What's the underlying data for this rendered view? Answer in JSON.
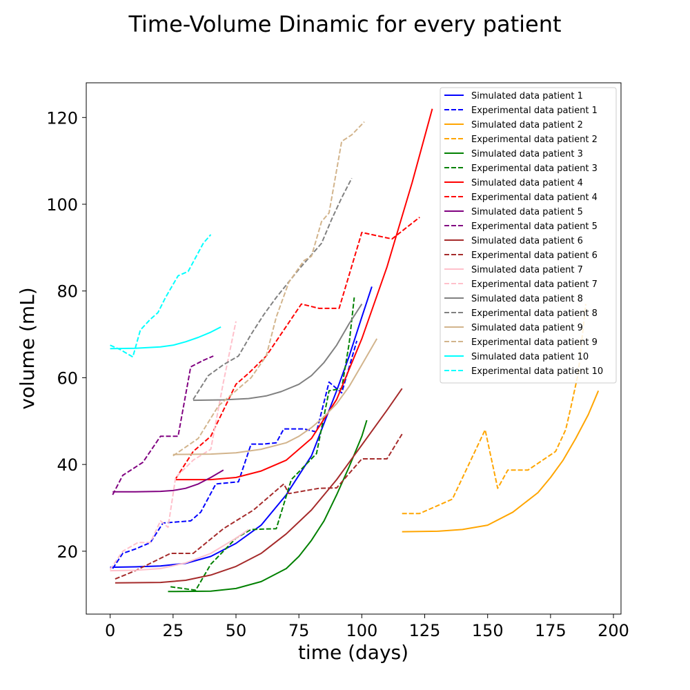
{
  "chart_data": {
    "type": "line",
    "title": "Time-Volume Dinamic for every patient",
    "xlabel": "time (days)",
    "ylabel": "volume (mL)",
    "xlim": [
      -9.5,
      203
    ],
    "ylim": [
      5.5,
      128
    ],
    "xticks": [
      0,
      25,
      50,
      75,
      100,
      125,
      150,
      175,
      200
    ],
    "yticks": [
      20,
      40,
      60,
      80,
      100,
      120
    ],
    "grid": false,
    "legend_position": "top-right",
    "series": [
      {
        "name": "Simulated data patient 1",
        "color": "#0000ff",
        "style": "solid",
        "x": [
          0,
          10,
          20,
          30,
          40,
          50,
          60,
          70,
          80,
          90,
          95,
          100,
          104
        ],
        "y": [
          16.3,
          16.4,
          16.6,
          17.2,
          18.8,
          21.8,
          26,
          33,
          42,
          57,
          65,
          74,
          81
        ]
      },
      {
        "name": "Experimental data patient 1",
        "color": "#0000ff",
        "style": "dashed",
        "x": [
          1,
          5,
          10,
          16,
          21,
          32,
          36,
          42,
          51,
          56,
          61,
          66,
          69,
          77,
          82,
          87,
          89,
          92,
          98
        ],
        "y": [
          16,
          19.5,
          20.5,
          22,
          26.5,
          27,
          29,
          35.5,
          36,
          44.7,
          44.7,
          45,
          48.2,
          48.2,
          47.5,
          59,
          58,
          56.5,
          68.5
        ]
      },
      {
        "name": "Simulated data patient 2",
        "color": "#ffa500",
        "style": "solid",
        "x": [
          116,
          130,
          140,
          150,
          160,
          170,
          175,
          180,
          185,
          190,
          194
        ],
        "y": [
          24.5,
          24.6,
          25,
          26,
          29,
          33.5,
          37,
          41,
          46,
          51.5,
          57
        ]
      },
      {
        "name": "Experimental data patient 2",
        "color": "#ffa500",
        "style": "dashed",
        "x": [
          116,
          123,
          136,
          149,
          154,
          158,
          166,
          177,
          181,
          183,
          186,
          189
        ],
        "y": [
          28.7,
          28.7,
          32,
          48,
          34.5,
          38.7,
          38.7,
          43,
          48,
          53,
          61,
          77
        ]
      },
      {
        "name": "Simulated data patient 3",
        "color": "#008000",
        "style": "solid",
        "x": [
          23,
          40,
          50,
          60,
          70,
          75,
          80,
          85,
          90,
          95,
          100,
          102
        ],
        "y": [
          10.7,
          10.8,
          11.4,
          13,
          16,
          18.8,
          22.5,
          27,
          33,
          39.5,
          46.5,
          50.2
        ]
      },
      {
        "name": "Experimental data patient 3",
        "color": "#008000",
        "style": "dashed",
        "x": [
          24,
          34,
          40,
          50,
          56,
          66,
          72,
          82,
          87,
          92,
          95,
          97
        ],
        "y": [
          11.8,
          11,
          17,
          23,
          25,
          25.2,
          36.5,
          42.5,
          57,
          57.5,
          68,
          78.5
        ]
      },
      {
        "name": "Simulated data patient 4",
        "color": "#ff0000",
        "style": "solid",
        "x": [
          26,
          40,
          50,
          60,
          70,
          80,
          90,
          100,
          110,
          120,
          128
        ],
        "y": [
          36.5,
          36.5,
          37,
          38.5,
          41,
          46,
          55,
          69,
          85.5,
          105,
          122
        ]
      },
      {
        "name": "Experimental data patient 4",
        "color": "#ff0000",
        "style": "dashed",
        "x": [
          26,
          33,
          40,
          50,
          55,
          62,
          76,
          83,
          91,
          100,
          112,
          123
        ],
        "y": [
          36.7,
          43,
          46.5,
          58.5,
          61,
          65,
          77,
          76,
          76,
          93.5,
          92,
          97
        ]
      },
      {
        "name": "Simulated data patient 5",
        "color": "#800080",
        "style": "solid",
        "x": [
          1,
          10,
          20,
          25,
          30,
          35,
          40,
          45
        ],
        "y": [
          33.7,
          33.7,
          33.8,
          34,
          34.5,
          35.5,
          37,
          38.7
        ]
      },
      {
        "name": "Experimental data patient 5",
        "color": "#800080",
        "style": "dashed",
        "x": [
          1,
          5,
          13,
          20,
          27,
          32,
          37,
          41
        ],
        "y": [
          33,
          37.5,
          40.5,
          46.5,
          46.5,
          62.5,
          64,
          65
        ]
      },
      {
        "name": "Simulated data patient 6",
        "color": "#a52a2a",
        "style": "solid",
        "x": [
          2,
          20,
          30,
          40,
          50,
          60,
          70,
          80,
          90,
          100,
          110,
          116
        ],
        "y": [
          12.7,
          12.8,
          13.3,
          14.5,
          16.5,
          19.5,
          24,
          29.5,
          36.5,
          44.5,
          52.5,
          57.5
        ]
      },
      {
        "name": "Experimental data patient 6",
        "color": "#a52a2a",
        "style": "dashed",
        "x": [
          2,
          10,
          24,
          33,
          45,
          57,
          69,
          71,
          83,
          90,
          100,
          110,
          116
        ],
        "y": [
          13.6,
          15.5,
          19.5,
          19.5,
          25.2,
          29.5,
          35.5,
          33.3,
          34.5,
          34.6,
          41.3,
          41.3,
          47
        ]
      },
      {
        "name": "Simulated data patient 7",
        "color": "#ffc0cb",
        "style": "solid",
        "x": [
          0,
          10,
          20,
          30,
          40,
          50,
          55
        ],
        "y": [
          15.5,
          15.6,
          16,
          17.3,
          19.5,
          23,
          25
        ]
      },
      {
        "name": "Experimental data patient 7",
        "color": "#ffc0cb",
        "style": "dashed",
        "x": [
          0,
          5,
          11,
          16,
          20,
          23,
          26,
          33,
          40,
          45,
          50
        ],
        "y": [
          15.8,
          20,
          22,
          22,
          27,
          25.5,
          37,
          41,
          43.5,
          59,
          73
        ]
      },
      {
        "name": "Simulated data patient 8",
        "color": "#808080",
        "style": "solid",
        "x": [
          33,
          45,
          55,
          62,
          68,
          75,
          80,
          85,
          90,
          95,
          100
        ],
        "y": [
          54.8,
          54.9,
          55.2,
          55.8,
          56.8,
          58.5,
          60.5,
          63.5,
          67.5,
          72.5,
          77
        ]
      },
      {
        "name": "Experimental data patient 8",
        "color": "#808080",
        "style": "dashed",
        "x": [
          33,
          39,
          45,
          51,
          56,
          61,
          66,
          75,
          84,
          88,
          92,
          96
        ],
        "y": [
          55,
          60.5,
          63,
          65,
          70,
          74.5,
          78.5,
          85,
          91,
          96.5,
          101.5,
          106
        ]
      },
      {
        "name": "Simulated data patient 9",
        "color": "#d2b48c",
        "style": "solid",
        "x": [
          25,
          40,
          50,
          60,
          70,
          75,
          80,
          85,
          90,
          95,
          100,
          106
        ],
        "y": [
          42.3,
          42.4,
          42.7,
          43.5,
          45,
          46.5,
          48.5,
          51,
          54,
          58,
          63,
          69
        ]
      },
      {
        "name": "Experimental data patient 9",
        "color": "#d2b48c",
        "style": "dashed",
        "x": [
          25,
          35,
          43,
          51,
          56,
          62,
          66,
          71,
          77,
          80,
          84,
          87,
          92,
          96,
          101
        ],
        "y": [
          42,
          46,
          53.5,
          57.5,
          60,
          65,
          74,
          82,
          87,
          88,
          96,
          98,
          114.5,
          116,
          119
        ]
      },
      {
        "name": "Simulated data patient 10",
        "color": "#00ffff",
        "style": "solid",
        "x": [
          0,
          10,
          20,
          25,
          30,
          35,
          40,
          44
        ],
        "y": [
          66.7,
          66.8,
          67.1,
          67.5,
          68.3,
          69.3,
          70.5,
          71.7
        ]
      },
      {
        "name": "Experimental data patient 10",
        "color": "#00ffff",
        "style": "dashed",
        "x": [
          0,
          4,
          9,
          12,
          16,
          19,
          22,
          27,
          31,
          37,
          40
        ],
        "y": [
          67.5,
          66.5,
          64.8,
          71,
          73.5,
          75,
          78.5,
          83.5,
          84.5,
          91,
          93
        ]
      }
    ]
  }
}
